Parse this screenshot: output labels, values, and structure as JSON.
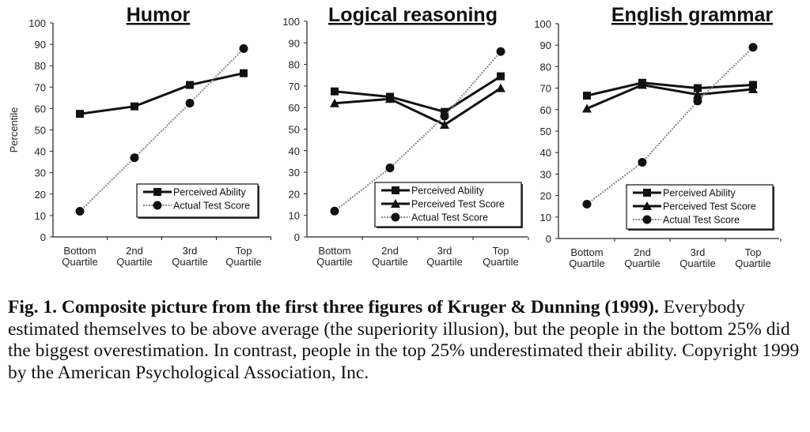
{
  "chart_data": [
    {
      "type": "line",
      "title": "Humor",
      "ylabel": "Percentile",
      "xlabel": "",
      "ylim": [
        0,
        100
      ],
      "yticks": [
        0,
        10,
        20,
        30,
        40,
        50,
        60,
        70,
        80,
        90,
        100
      ],
      "categories": [
        "Bottom Quartile",
        "2nd Quartile",
        "3rd Quartile",
        "Top Quartile"
      ],
      "legend_position": "bottom-right",
      "series": [
        {
          "name": "Perceived Ability",
          "marker": "square",
          "style": "solid",
          "values": [
            57.5,
            61,
            71,
            76.5
          ]
        },
        {
          "name": "Actual Test Score",
          "marker": "circle",
          "style": "dotted",
          "values": [
            12,
            37,
            62.5,
            88
          ]
        }
      ]
    },
    {
      "type": "line",
      "title": "Logical reasoning",
      "ylabel": "",
      "xlabel": "",
      "ylim": [
        0,
        100
      ],
      "yticks": [
        0,
        10,
        20,
        30,
        40,
        50,
        60,
        70,
        80,
        90,
        100
      ],
      "categories": [
        "Bottom Quartile",
        "2nd Quartile",
        "3rd Quartile",
        "Top Quartile"
      ],
      "legend_position": "bottom-right",
      "series": [
        {
          "name": "Perceived Ability",
          "marker": "square",
          "style": "solid",
          "values": [
            67.5,
            65,
            58,
            74.5
          ]
        },
        {
          "name": "Perceived Test Score",
          "marker": "triangle",
          "style": "solid",
          "values": [
            62,
            64,
            52,
            69
          ]
        },
        {
          "name": "Actual Test Score",
          "marker": "circle",
          "style": "dotted",
          "values": [
            12,
            32,
            56,
            86
          ]
        }
      ]
    },
    {
      "type": "line",
      "title": "English grammar",
      "ylabel": "",
      "xlabel": "",
      "ylim": [
        0,
        100
      ],
      "yticks": [
        0,
        10,
        20,
        30,
        40,
        50,
        60,
        70,
        80,
        90,
        100
      ],
      "categories": [
        "Bottom Quartile",
        "2nd Quartile",
        "3rd Quartile",
        "Top Quartile"
      ],
      "legend_position": "bottom-right",
      "series": [
        {
          "name": "Perceived Ability",
          "marker": "square",
          "style": "solid",
          "values": [
            66.5,
            72.5,
            70,
            71.5
          ]
        },
        {
          "name": "Perceived Test Score",
          "marker": "triangle",
          "style": "solid",
          "values": [
            60.5,
            71.5,
            67,
            69.5
          ]
        },
        {
          "name": "Actual Test Score",
          "marker": "circle",
          "style": "dotted",
          "values": [
            16,
            35.5,
            64,
            89
          ]
        }
      ]
    }
  ],
  "caption": {
    "bold": "Fig. 1. Composite picture from the first three figures of Kruger & Dunning (1999).",
    "text": "Everybody estimated themselves to be above average (the superiority illusion), but the people in the bottom 25% did the biggest overestimation. In contrast, people in the top 25% underestimated their ability. Copyright 1999 by the American Psychological Association, Inc."
  },
  "colors": {
    "solid": "#111111",
    "dotted": "#888888"
  }
}
